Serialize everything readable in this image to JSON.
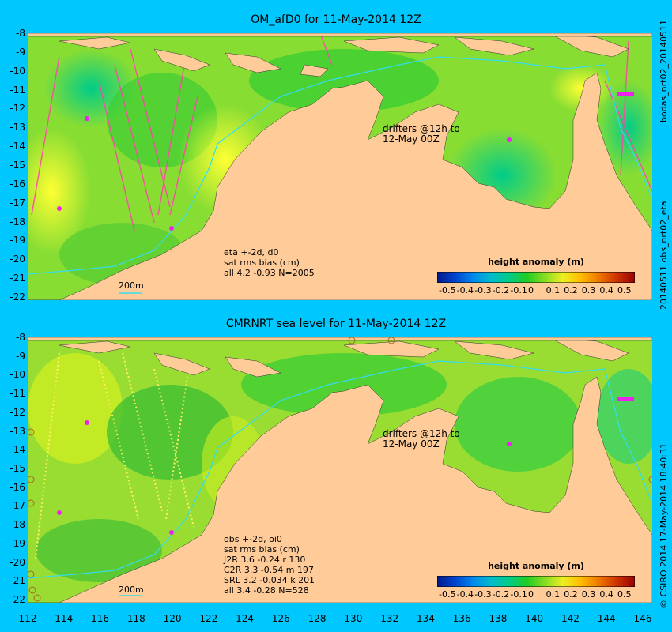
{
  "panels": [
    {
      "title": "OM_afD0 for 11-May-2014 12Z",
      "annotation": [
        "eta +-2d, d0",
        "sat rms bias (cm)",
        "all 4.2 -0.93 N=2005"
      ],
      "drifters": [
        "drifters @12h to",
        "12-May 00Z"
      ],
      "depth_label": "200m",
      "colorbar_title": "height anomaly (m)"
    },
    {
      "title": "CMRNRT sea level  for 11-May-2014 12Z",
      "annotation": [
        "obs +-2d, oi0",
        "sat rms bias (cm)",
        "J2R   3.6 -0.24 r 130",
        "C2R   3.3 -0.54 m 197",
        "SRL   3.2 -0.034 k 201",
        "all   3.4 -0.28 N=528"
      ],
      "drifters": [
        "drifters @12h to",
        "12-May 00Z"
      ],
      "depth_label": "200m",
      "colorbar_title": "height anomaly (m)"
    }
  ],
  "y_ticks": [
    "-8",
    "-9",
    "-10",
    "-11",
    "-12",
    "-13",
    "-14",
    "-15",
    "-16",
    "-17",
    "-18",
    "-19",
    "-20",
    "-21",
    "-22"
  ],
  "x_ticks": [
    "112",
    "114",
    "116",
    "118",
    "120",
    "122",
    "124",
    "126",
    "128",
    "130",
    "132",
    "134",
    "136",
    "138",
    "140",
    "142",
    "144",
    "146"
  ],
  "colorbar_ticks": [
    "-0.5",
    "-0.4",
    "-0.3",
    "-0.2",
    "-0.1",
    "0",
    "0.1",
    "0.2",
    "0.3",
    "0.4",
    "0.5"
  ],
  "side_labels": {
    "top_right_a": "bodas_nrt02_20140511",
    "top_right_b": "20140511 obs_nrt02_eta",
    "bottom_right": "© CSIRO 2014  17-May-2014 18:40:31"
  },
  "colors": {
    "land": "#ffcc99",
    "background": "#00c8ff",
    "bathy_line": "#33ddee"
  }
}
